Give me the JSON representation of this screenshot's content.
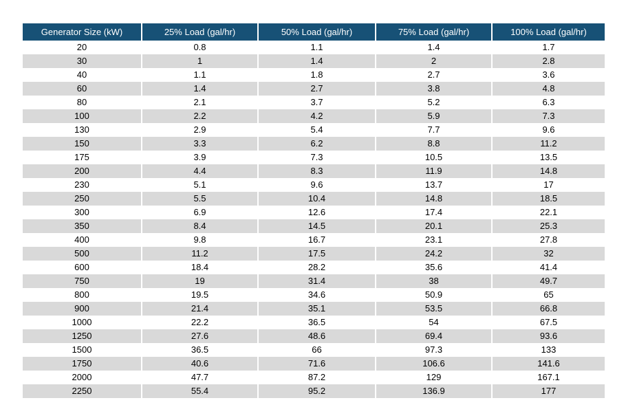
{
  "table": {
    "columns": [
      "Generator Size (kW)",
      "25% Load (gal/hr)",
      "50% Load (gal/hr)",
      "75% Load (gal/hr)",
      "100% Load (gal/hr)"
    ],
    "rows": [
      [
        "20",
        "0.8",
        "1.1",
        "1.4",
        "1.7"
      ],
      [
        "30",
        "1",
        "1.4",
        "2",
        "2.8"
      ],
      [
        "40",
        "1.1",
        "1.8",
        "2.7",
        "3.6"
      ],
      [
        "60",
        "1.4",
        "2.7",
        "3.8",
        "4.8"
      ],
      [
        "80",
        "2.1",
        "3.7",
        "5.2",
        "6.3"
      ],
      [
        "100",
        "2.2",
        "4.2",
        "5.9",
        "7.3"
      ],
      [
        "130",
        "2.9",
        "5.4",
        "7.7",
        "9.6"
      ],
      [
        "150",
        "3.3",
        "6.2",
        "8.8",
        "11.2"
      ],
      [
        "175",
        "3.9",
        "7.3",
        "10.5",
        "13.5"
      ],
      [
        "200",
        "4.4",
        "8.3",
        "11.9",
        "14.8"
      ],
      [
        "230",
        "5.1",
        "9.6",
        "13.7",
        "17"
      ],
      [
        "250",
        "5.5",
        "10.4",
        "14.8",
        "18.5"
      ],
      [
        "300",
        "6.9",
        "12.6",
        "17.4",
        "22.1"
      ],
      [
        "350",
        "8.4",
        "14.5",
        "20.1",
        "25.3"
      ],
      [
        "400",
        "9.8",
        "16.7",
        "23.1",
        "27.8"
      ],
      [
        "500",
        "11.2",
        "17.5",
        "24.2",
        "32"
      ],
      [
        "600",
        "18.4",
        "28.2",
        "35.6",
        "41.4"
      ],
      [
        "750",
        "19",
        "31.4",
        "38",
        "49.7"
      ],
      [
        "800",
        "19.5",
        "34.6",
        "50.9",
        "65"
      ],
      [
        "900",
        "21.4",
        "35.1",
        "53.5",
        "66.8"
      ],
      [
        "1000",
        "22.2",
        "36.5",
        "54",
        "67.5"
      ],
      [
        "1250",
        "27.6",
        "48.6",
        "69.4",
        "93.6"
      ],
      [
        "1500",
        "36.5",
        "66",
        "97.3",
        "133"
      ],
      [
        "1750",
        "40.6",
        "71.6",
        "106.6",
        "141.6"
      ],
      [
        "2000",
        "47.7",
        "87.2",
        "129",
        "167.1"
      ],
      [
        "2250",
        "55.4",
        "95.2",
        "136.9",
        "177"
      ]
    ]
  },
  "colors": {
    "header_bg": "#175176",
    "header_text": "#FFFFFF",
    "stripe_bg": "#D9D9D9",
    "row_bg": "#FFFFFF",
    "cell_text": "#000000",
    "page_bg": "#FFFFFF"
  }
}
